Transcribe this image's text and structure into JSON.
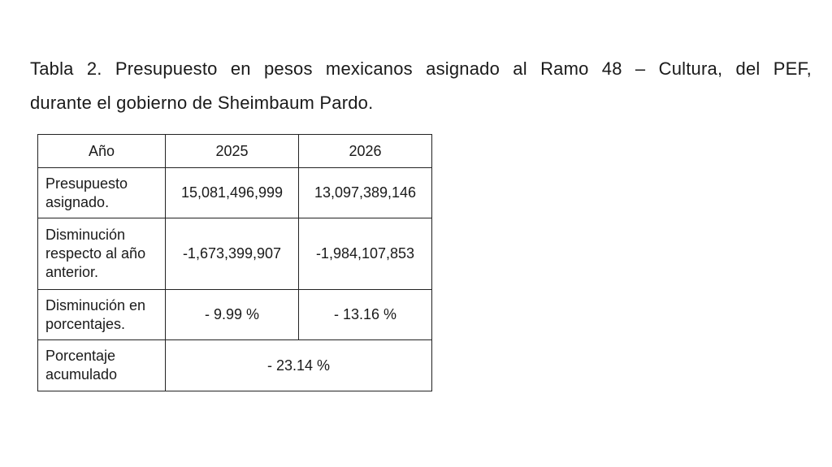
{
  "caption": {
    "line1": "Tabla 2. Presupuesto en pesos mexicanos asignado al Ramo 48 – Cultura, del PEF,",
    "line2": "durante el gobierno de Sheimbaum Pardo."
  },
  "table": {
    "headers": [
      "Año",
      "2025",
      "2026"
    ],
    "rows": [
      {
        "label": "Presupuesto asignado.",
        "v2025": "15,081,496,999",
        "v2026": "13,097,389,146"
      },
      {
        "label": "Disminución respecto al año anterior.",
        "v2025": "-1,673,399,907",
        "v2026": "-1,984,107,853"
      },
      {
        "label": "Disminución en porcentajes.",
        "v2025": "- 9.99 %",
        "v2026": "- 13.16 %"
      },
      {
        "label": "Porcentaje acumulado",
        "merged": "- 23.14 %"
      }
    ]
  }
}
